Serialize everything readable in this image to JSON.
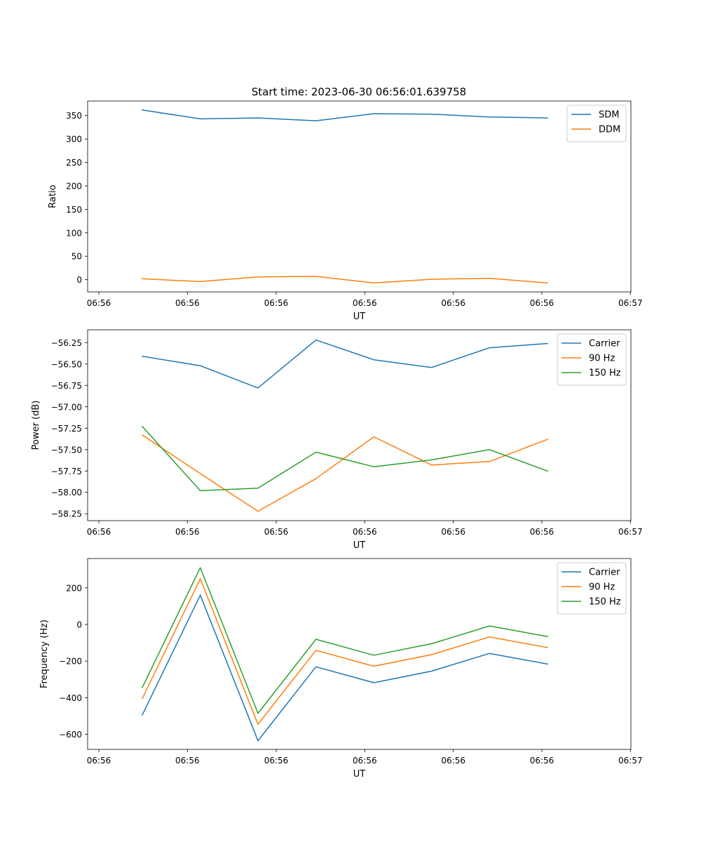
{
  "figure": {
    "title": "Start time: 2023-06-30 06:56:01.639758"
  },
  "chart_data": [
    {
      "type": "line",
      "title": "Start time: 2023-06-30 06:56:01.639758",
      "xlabel": "UT",
      "ylabel": "Ratio",
      "x_tick_labels": [
        "06:56",
        "06:56",
        "06:56",
        "06:56",
        "06:56",
        "06:56",
        "06:56",
        "06:57"
      ],
      "y_ticks": [
        0,
        50,
        100,
        150,
        200,
        250,
        300,
        350
      ],
      "y_tick_labels": [
        "0",
        "50",
        "100",
        "150",
        "200",
        "250",
        "300",
        "350"
      ],
      "ylim": [
        -26,
        381
      ],
      "legend_position": "top-right",
      "grid": false,
      "series": [
        {
          "name": "SDM",
          "color": "#1f77b4",
          "values": [
            362,
            343,
            345,
            339,
            354,
            353,
            347,
            345
          ]
        },
        {
          "name": "DDM",
          "color": "#ff7f0e",
          "values": [
            2,
            -4,
            6,
            7,
            -7,
            1,
            3,
            -7
          ]
        }
      ]
    },
    {
      "type": "line",
      "xlabel": "UT",
      "ylabel": "Power (dB)",
      "x_tick_labels": [
        "06:56",
        "06:56",
        "06:56",
        "06:56",
        "06:56",
        "06:56",
        "06:56",
        "06:57"
      ],
      "y_ticks": [
        -58.25,
        -58.0,
        -57.75,
        -57.5,
        -57.25,
        -57.0,
        -56.75,
        -56.5,
        -56.25
      ],
      "y_tick_labels": [
        "−58.25",
        "−58.00",
        "−57.75",
        "−57.50",
        "−57.25",
        "−57.00",
        "−56.75",
        "−56.50",
        "−56.25"
      ],
      "ylim": [
        -58.33,
        -56.1
      ],
      "legend_position": "top-right",
      "grid": false,
      "series": [
        {
          "name": "Carrier",
          "color": "#1f77b4",
          "values": [
            -56.41,
            -56.52,
            -56.78,
            -56.22,
            -56.45,
            -56.54,
            -56.31,
            -56.26
          ]
        },
        {
          "name": "90 Hz",
          "color": "#ff7f0e",
          "values": [
            -57.33,
            -57.78,
            -58.22,
            -57.84,
            -57.35,
            -57.68,
            -57.64,
            -57.38
          ]
        },
        {
          "name": "150 Hz",
          "color": "#2ca02c",
          "values": [
            -57.23,
            -57.98,
            -57.95,
            -57.53,
            -57.7,
            -57.62,
            -57.5,
            -57.75
          ]
        }
      ]
    },
    {
      "type": "line",
      "xlabel": "UT",
      "ylabel": "Frequency (Hz)",
      "x_tick_labels": [
        "06:56",
        "06:56",
        "06:56",
        "06:56",
        "06:56",
        "06:56",
        "06:56",
        "06:57"
      ],
      "y_ticks": [
        -600,
        -400,
        -200,
        0,
        200
      ],
      "y_tick_labels": [
        "−600",
        "−400",
        "−200",
        "0",
        "200"
      ],
      "ylim": [
        -682,
        360
      ],
      "legend_position": "top-right",
      "grid": false,
      "series": [
        {
          "name": "Carrier",
          "color": "#1f77b4",
          "values": [
            -494,
            160,
            -635,
            -231,
            -318,
            -255,
            -158,
            -216
          ]
        },
        {
          "name": "90 Hz",
          "color": "#ff7f0e",
          "values": [
            -404,
            250,
            -545,
            -141,
            -228,
            -165,
            -68,
            -126
          ]
        },
        {
          "name": "150 Hz",
          "color": "#2ca02c",
          "values": [
            -344,
            310,
            -485,
            -81,
            -168,
            -105,
            -8,
            -66
          ]
        }
      ]
    }
  ]
}
